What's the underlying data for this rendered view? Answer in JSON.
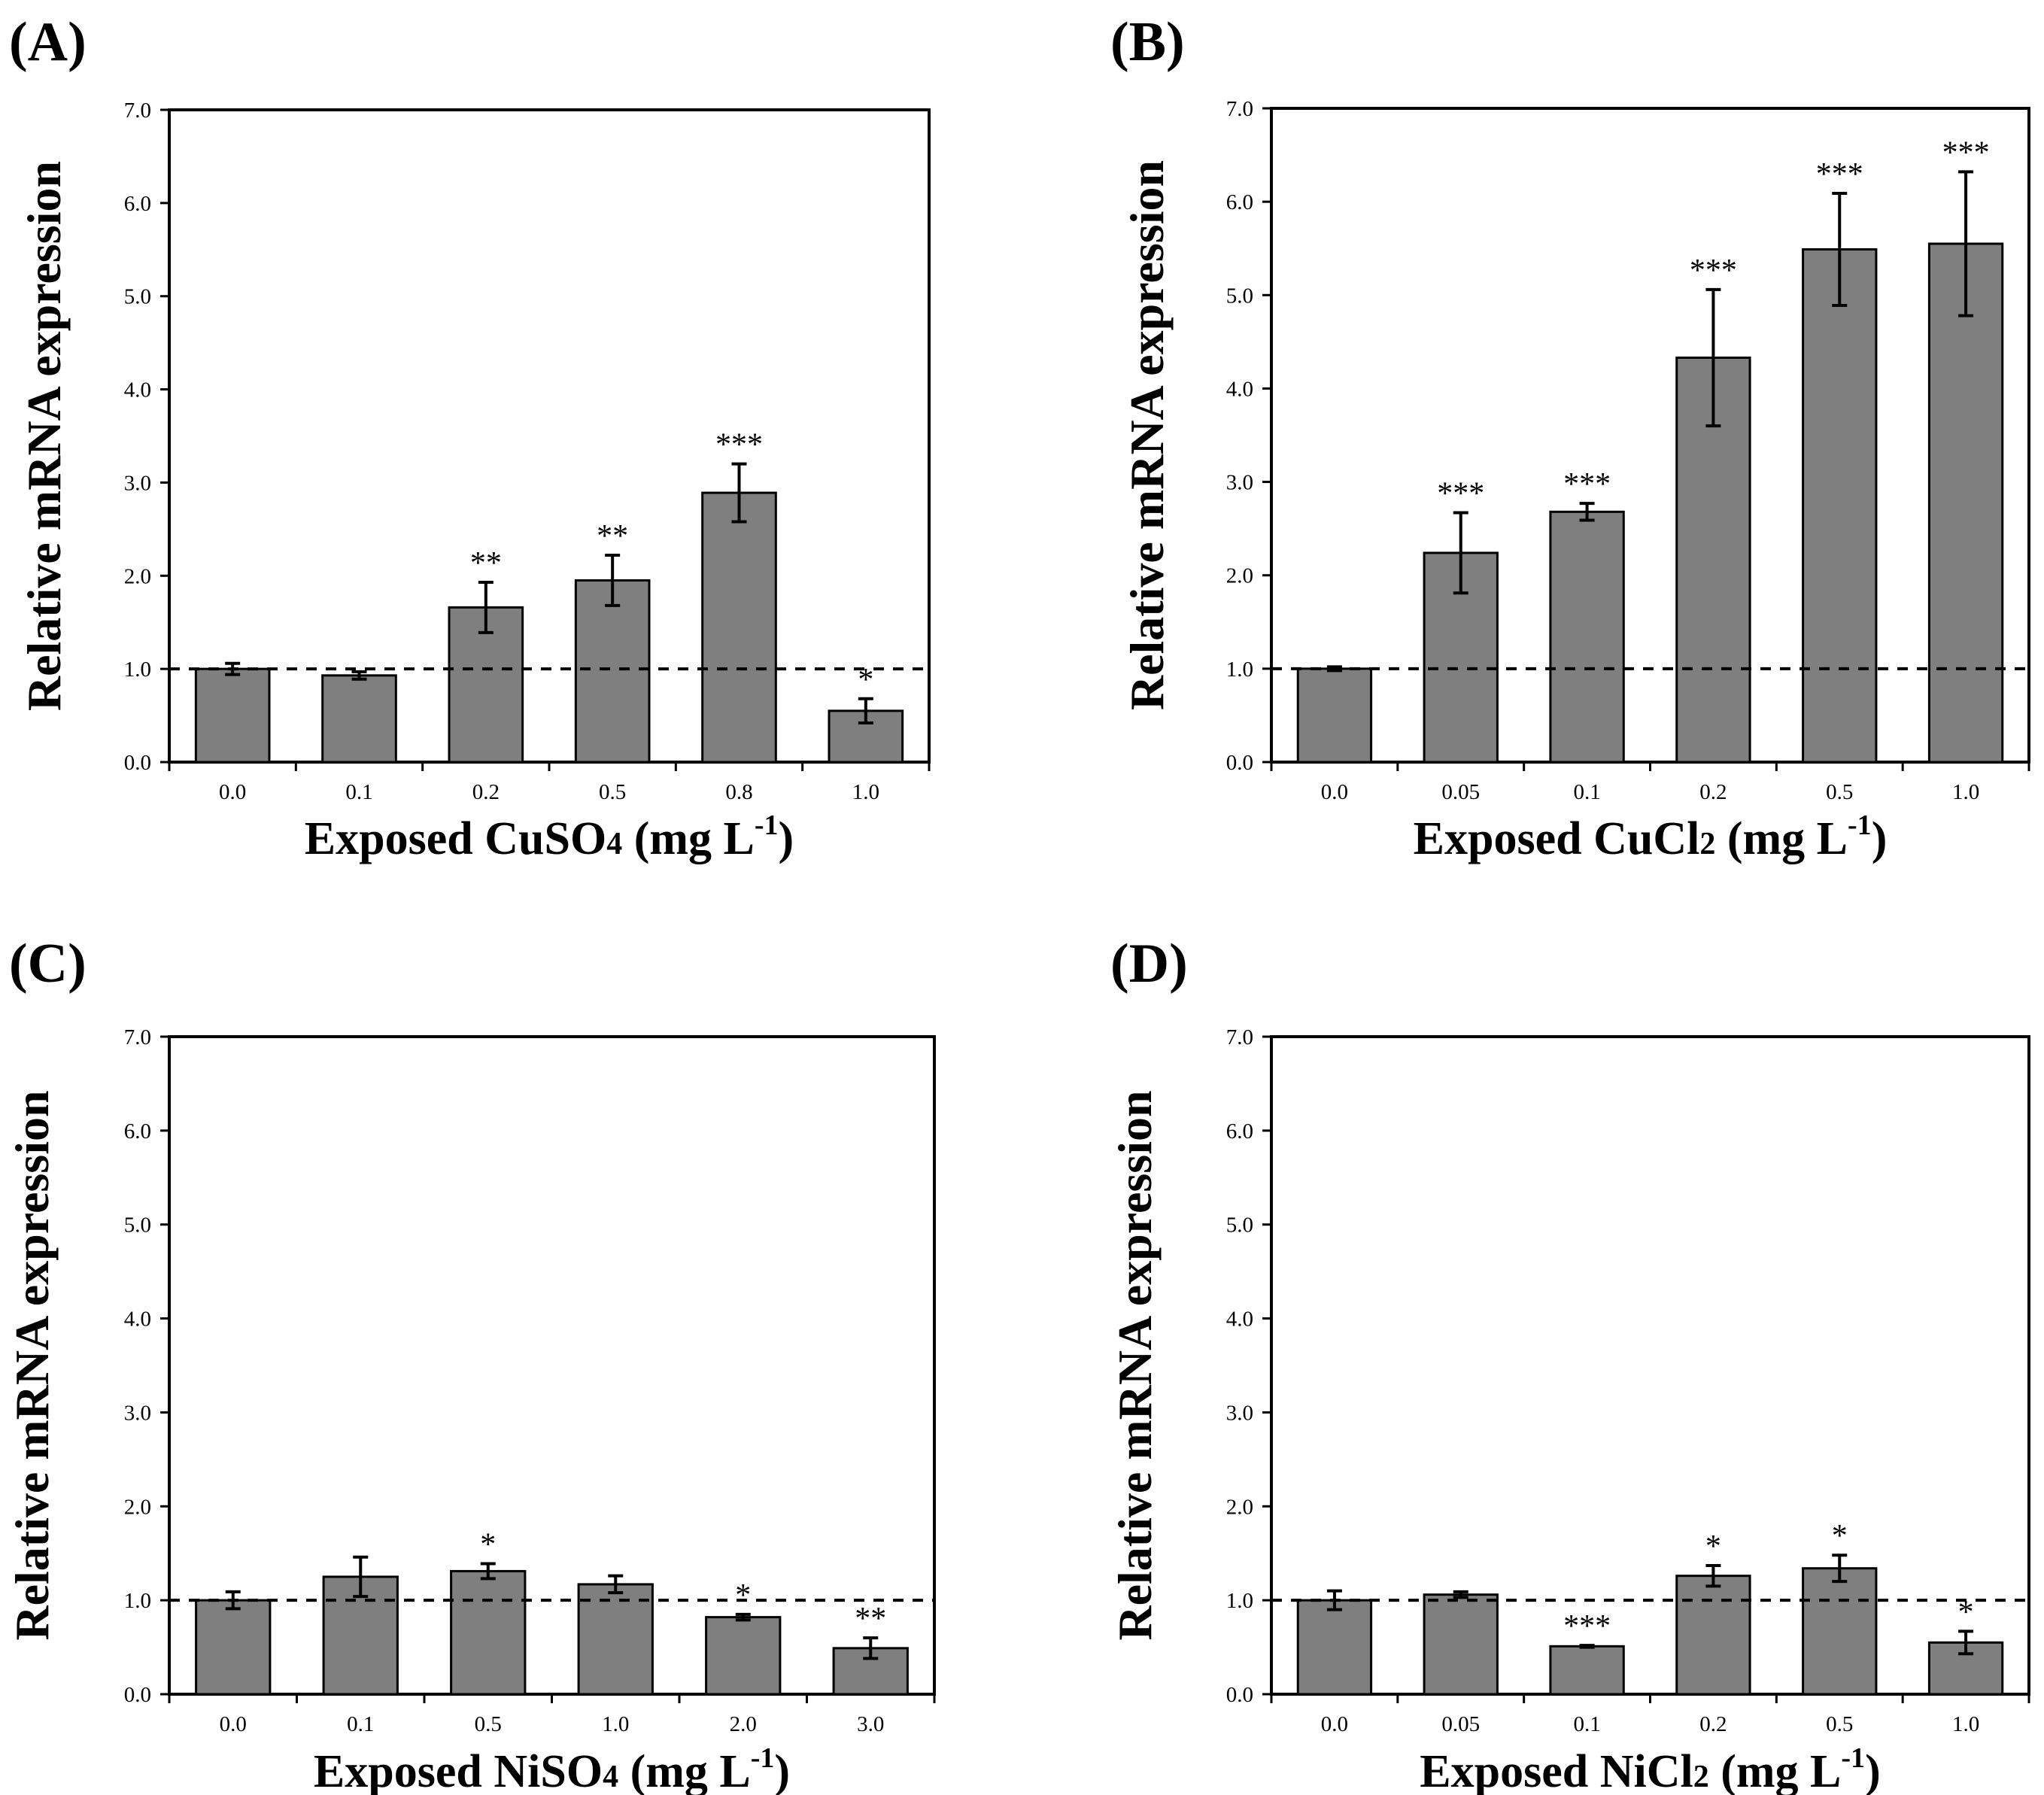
{
  "chart_data": [
    {
      "type": "bar",
      "panel_label": "(A)",
      "categories": [
        "0.0",
        "0.1",
        "0.2",
        "0.5",
        "0.8",
        "1.0"
      ],
      "values": [
        1.0,
        0.93,
        1.66,
        1.95,
        2.89,
        0.55
      ],
      "errors": [
        0.06,
        0.04,
        0.27,
        0.27,
        0.31,
        0.13
      ],
      "significance": [
        "",
        "",
        "**",
        "**",
        "***",
        "*"
      ],
      "xlabel": {
        "main": "Exposed CuSO",
        "sub": "4",
        "unit": " (mg L",
        "sup": "-1",
        "close": ")"
      },
      "ylabel": "Relative mRNA expression",
      "ylim": [
        0,
        7
      ],
      "yticks": [
        "0.0",
        "1.0",
        "2.0",
        "3.0",
        "4.0",
        "5.0",
        "6.0",
        "7.0"
      ],
      "reference_line": 1.0,
      "bar_color": "#7f7f7f"
    },
    {
      "type": "bar",
      "panel_label": "(B)",
      "categories": [
        "0.0",
        "0.05",
        "0.1",
        "0.2",
        "0.5",
        "1.0"
      ],
      "values": [
        1.0,
        2.24,
        2.68,
        4.33,
        5.49,
        5.55
      ],
      "errors": [
        0.02,
        0.43,
        0.09,
        0.73,
        0.6,
        0.77
      ],
      "significance": [
        "",
        "***",
        "***",
        "***",
        "***",
        "***"
      ],
      "xlabel": {
        "main": "Exposed CuCl",
        "sub": "2",
        "unit": " (mg L",
        "sup": "-1",
        "close": ")"
      },
      "ylabel": "Relative mRNA expression",
      "ylim": [
        0,
        7
      ],
      "yticks": [
        "0.0",
        "1.0",
        "2.0",
        "3.0",
        "4.0",
        "5.0",
        "6.0",
        "7.0"
      ],
      "reference_line": 1.0,
      "bar_color": "#7f7f7f"
    },
    {
      "type": "bar",
      "panel_label": "(C)",
      "categories": [
        "0.0",
        "0.1",
        "0.5",
        "1.0",
        "2.0",
        "3.0"
      ],
      "values": [
        1.0,
        1.25,
        1.31,
        1.17,
        0.82,
        0.49
      ],
      "errors": [
        0.09,
        0.21,
        0.08,
        0.09,
        0.03,
        0.11
      ],
      "significance": [
        "",
        "",
        "*",
        "",
        "*",
        "**"
      ],
      "xlabel": {
        "main": "Exposed NiSO",
        "sub": "4",
        "unit": " (mg L",
        "sup": "-1",
        "close": ")"
      },
      "ylabel": "Relative mRNA expression",
      "ylim": [
        0,
        7
      ],
      "yticks": [
        "0.0",
        "1.0",
        "2.0",
        "3.0",
        "4.0",
        "5.0",
        "6.0",
        "7.0"
      ],
      "reference_line": 1.0,
      "bar_color": "#7f7f7f"
    },
    {
      "type": "bar",
      "panel_label": "(D)",
      "categories": [
        "0.0",
        "0.05",
        "0.1",
        "0.2",
        "0.5",
        "1.0"
      ],
      "values": [
        1.0,
        1.06,
        0.51,
        1.26,
        1.34,
        0.55
      ],
      "errors": [
        0.1,
        0.03,
        0.01,
        0.11,
        0.14,
        0.12
      ],
      "significance": [
        "",
        "",
        "***",
        "*",
        "*",
        "*"
      ],
      "xlabel": {
        "main": "Exposed NiCl",
        "sub": "2",
        "unit": " (mg L",
        "sup": "-1",
        "close": ")"
      },
      "ylabel": "Relative mRNA expression",
      "ylim": [
        0,
        7
      ],
      "yticks": [
        "0.0",
        "1.0",
        "2.0",
        "3.0",
        "4.0",
        "5.0",
        "6.0",
        "7.0"
      ],
      "reference_line": 1.0,
      "bar_color": "#7f7f7f"
    }
  ]
}
